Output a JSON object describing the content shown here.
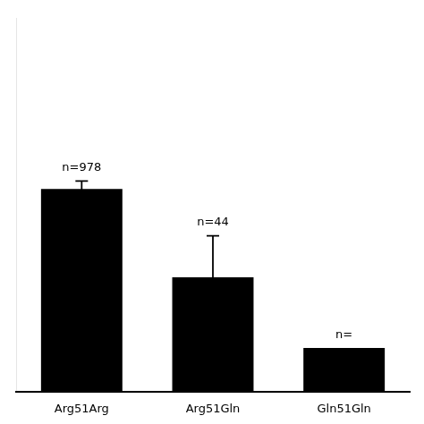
{
  "chart_data": {
    "type": "bar",
    "categories": [
      "Arg51Arg",
      "Arg51Gln",
      "Gln51Gln"
    ],
    "values": [
      760,
      430,
      165
    ],
    "errors": [
      30,
      155,
      0
    ],
    "color": "#000000",
    "annotations": [
      {
        "text": "n=978",
        "x": "Arg51Arg"
      },
      {
        "text": "n=44",
        "x": "Arg51Gln"
      },
      {
        "text": "n=",
        "x": "Gln51Gln"
      }
    ],
    "ylim": [
      0,
      1400
    ],
    "tick_labels": "x",
    "grid": false,
    "legend": false
  }
}
